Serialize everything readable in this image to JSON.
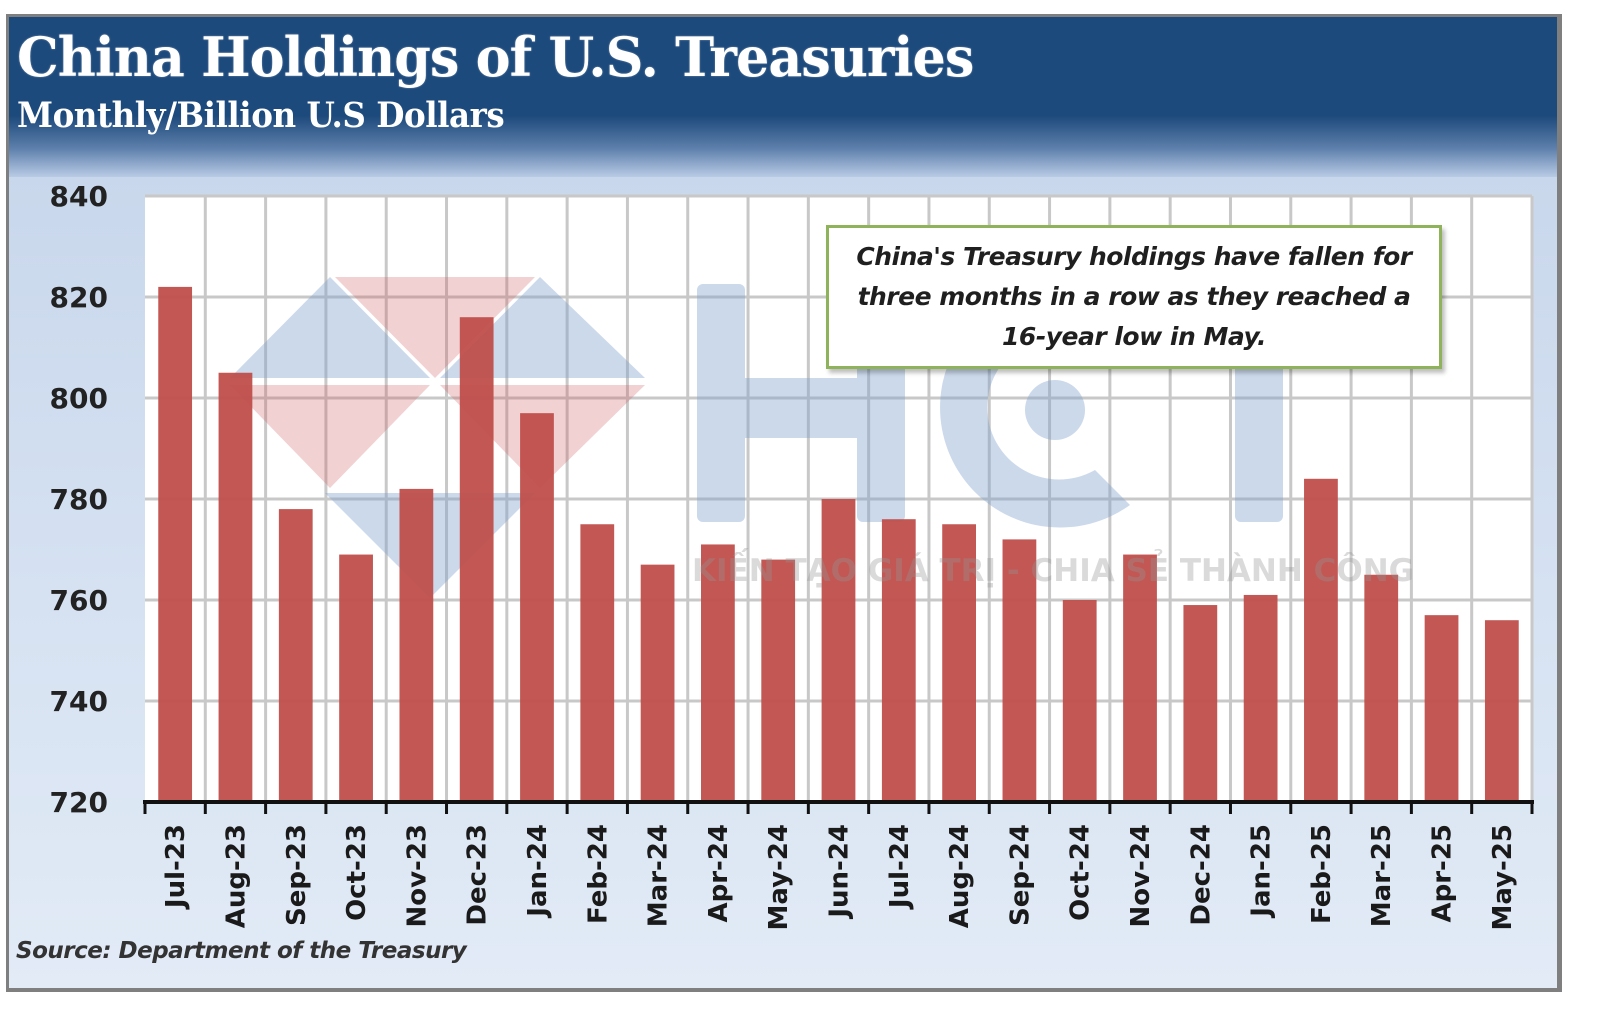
{
  "header": {
    "title": "China Holdings of U.S. Treasuries",
    "subtitle": "Monthly/Billion U.S Dollars"
  },
  "annotation": {
    "text": "China's Treasury holdings have fallen for three months in a row as they reached a 16-year low in May."
  },
  "footer": {
    "source": "Source: Department of the Treasury"
  },
  "watermark": {
    "logo_text": "HCT",
    "tagline": "KIẾN TẠO GIÁ TRỊ - CHIA SẺ THÀNH CÔNG"
  },
  "colors": {
    "bar": "#c0504d",
    "header_bg": "#1d4a7c",
    "callout_border": "#8fb35a"
  },
  "chart_data": {
    "type": "bar",
    "title": "China Holdings of U.S. Treasuries",
    "subtitle": "Monthly/Billion U.S Dollars",
    "xlabel": "",
    "ylabel": "",
    "ylim": [
      720,
      840
    ],
    "yticks": [
      720,
      740,
      760,
      780,
      800,
      820,
      840
    ],
    "ytick_labels": [
      "720",
      "740",
      "760",
      "780",
      "800",
      "820",
      "840"
    ],
    "grid": true,
    "legend": "none",
    "categories": [
      "Jul-23",
      "Aug-23",
      "Sep-23",
      "Oct-23",
      "Nov-23",
      "Dec-23",
      "Jan-24",
      "Feb-24",
      "Mar-24",
      "Apr-24",
      "May-24",
      "Jun-24",
      "Jul-24",
      "Aug-24",
      "Sep-24",
      "Oct-24",
      "Nov-24",
      "Dec-24",
      "Jan-25",
      "Feb-25",
      "Mar-25",
      "Apr-25",
      "May-25"
    ],
    "values": [
      822,
      805,
      778,
      769,
      782,
      816,
      797,
      775,
      767,
      771,
      768,
      780,
      776,
      775,
      772,
      760,
      769,
      759,
      761,
      784,
      765,
      757,
      756
    ],
    "annotation": "China's Treasury holdings have fallen for three months in a row as they reached a 16-year low in May.",
    "source": "Source: Department of the Treasury"
  }
}
